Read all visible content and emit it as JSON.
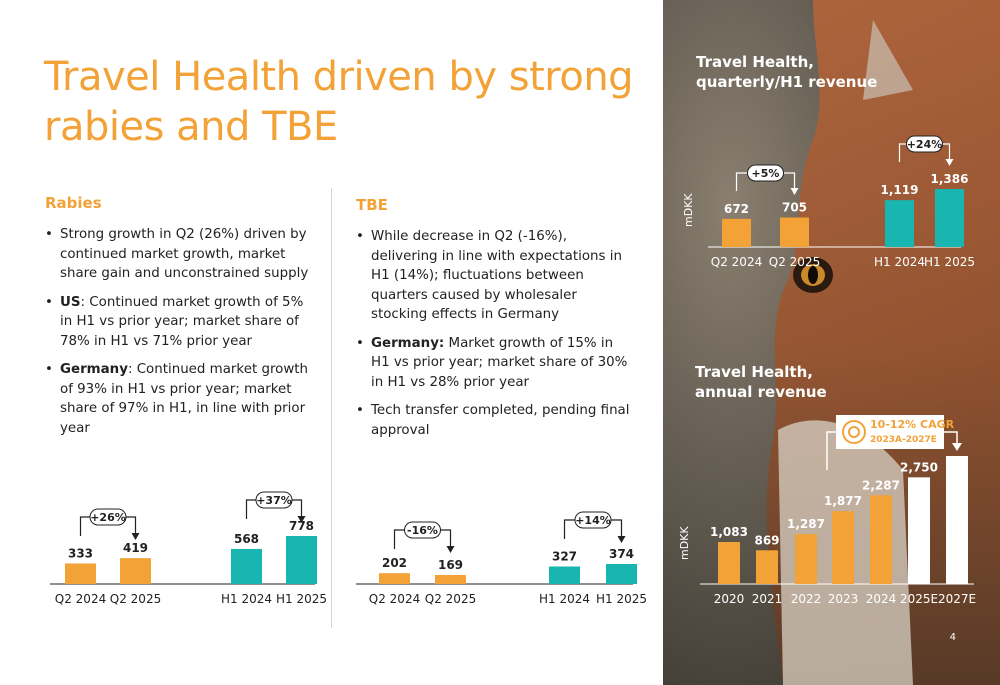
{
  "title": "Travel Health driven by strong rabies and TBE",
  "page_number": "4",
  "colors": {
    "accent": "#F2A236",
    "teal": "#18B5B1",
    "white_bar": "#FFFFFF"
  },
  "rabies": {
    "heading": "Rabies",
    "bullets": [
      {
        "bold": "",
        "text": "Strong growth in Q2 (26%) driven by continued market growth, market share gain and unconstrained supply"
      },
      {
        "bold": "US",
        "text": ": Continued market growth of 5% in H1 vs prior year; market share of 78% in H1 vs 71% prior year"
      },
      {
        "bold": "Germany",
        "text": ": Continued market growth of 93% in H1 vs prior year; market share of 97% in H1, in line with prior year"
      }
    ]
  },
  "tbe": {
    "heading": "TBE",
    "bullets": [
      {
        "bold": "",
        "text": "While decrease in Q2 (-16%), delivering in line with expectations in H1 (14%); fluctuations between quarters caused by wholesaler stocking effects in Germany"
      },
      {
        "bold": "Germany:",
        "text": " Market growth of 15% in H1 vs prior year; market share of 30% in H1 vs 28% prior year"
      },
      {
        "bold": "",
        "text": "Tech transfer completed, pending final approval"
      }
    ]
  },
  "panel": {
    "quarterly_title_1": "Travel Health,",
    "quarterly_title_2": "quarterly/H1 revenue",
    "annual_title_1": "Travel Health,",
    "annual_title_2": "annual revenue",
    "cagr_label_1": "10-12% CAGR",
    "cagr_label_2": "2023A-2027E"
  },
  "chart_data": [
    {
      "id": "rabies",
      "type": "bar",
      "categories": [
        "Q2 2024",
        "Q2 2025",
        "H1 2024",
        "H1 2025"
      ],
      "values": [
        333,
        419,
        568,
        778
      ],
      "labels": [
        "333",
        "419",
        "568",
        "778"
      ],
      "colors": [
        "#F2A236",
        "#F2A236",
        "#18B5B1",
        "#18B5B1"
      ],
      "annotations": [
        {
          "from": 0,
          "to": 1,
          "text": "+26%"
        },
        {
          "from": 2,
          "to": 3,
          "text": "+37%"
        }
      ]
    },
    {
      "id": "tbe",
      "type": "bar",
      "categories": [
        "Q2 2024",
        "Q2 2025",
        "H1 2024",
        "H1 2025"
      ],
      "values": [
        202,
        169,
        327,
        374
      ],
      "labels": [
        "202",
        "169",
        "327",
        "374"
      ],
      "colors": [
        "#F2A236",
        "#F2A236",
        "#18B5B1",
        "#18B5B1"
      ],
      "annotations": [
        {
          "from": 0,
          "to": 1,
          "text": "-16%"
        },
        {
          "from": 2,
          "to": 3,
          "text": "+14%"
        }
      ]
    },
    {
      "id": "quarterly",
      "type": "bar",
      "ylabel": "mDKK",
      "categories": [
        "Q2 2024",
        "Q2 2025",
        "H1 2024",
        "H1 2025"
      ],
      "values": [
        672,
        705,
        1119,
        1386
      ],
      "labels": [
        "672",
        "705",
        "1,119",
        "1,386"
      ],
      "colors": [
        "#F2A236",
        "#F2A236",
        "#18B5B1",
        "#18B5B1"
      ],
      "annotations": [
        {
          "from": 0,
          "to": 1,
          "text": "+5%"
        },
        {
          "from": 2,
          "to": 3,
          "text": "+24%"
        }
      ]
    },
    {
      "id": "annual",
      "type": "bar",
      "ylabel": "mDKK",
      "categories": [
        "2020",
        "2021",
        "2022",
        "2023",
        "2024",
        "2025E",
        "2027E"
      ],
      "values": [
        1083,
        869,
        1287,
        1877,
        2287,
        2750,
        3300
      ],
      "labels": [
        "1,083",
        "869",
        "1,287",
        "1,877",
        "2,287",
        "2,750",
        ""
      ],
      "colors": [
        "#F2A236",
        "#F2A236",
        "#F2A236",
        "#F2A236",
        "#F2A236",
        "#FFFFFF",
        "#FFFFFF"
      ]
    }
  ]
}
